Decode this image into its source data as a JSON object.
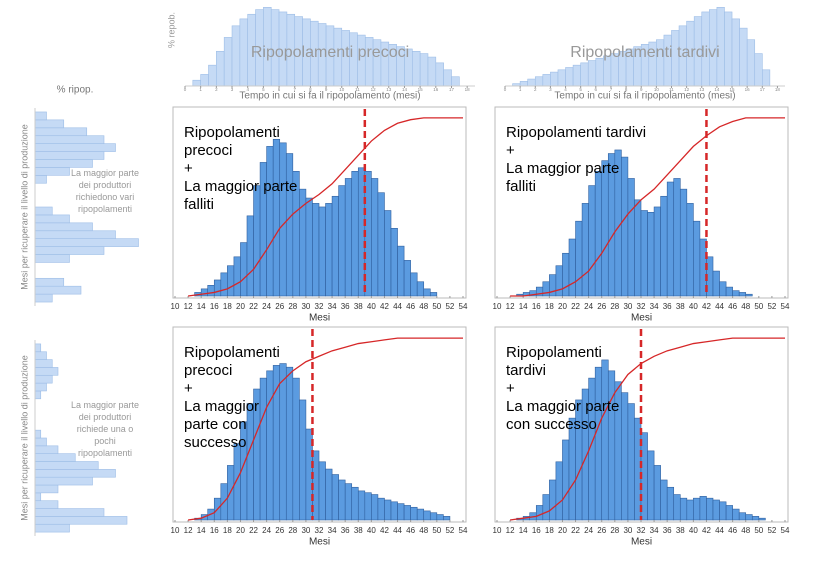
{
  "chart_data": [
    {
      "type": "histogram",
      "orientation": "vertical",
      "title": "Ripopolamenti precoci",
      "ylabel": "% repob.",
      "xlabel": "Tempo in cui si fa il ripopolamento (mesi)",
      "bins": [
        0.5,
        1,
        1.5,
        2,
        2.5,
        3,
        3.5,
        4,
        4.5,
        5,
        5.5,
        6,
        6.5,
        7,
        7.5,
        8,
        8.5,
        9,
        9.5,
        10,
        10.5,
        11,
        11.5,
        12,
        12.5,
        13,
        13.5,
        14,
        14.5,
        15,
        15.5,
        16,
        16.5,
        17,
        17.5
      ],
      "counts": [
        5,
        10,
        18,
        30,
        42,
        52,
        58,
        62,
        66,
        68,
        66,
        64,
        62,
        60,
        58,
        56,
        54,
        52,
        50,
        48,
        46,
        44,
        42,
        40,
        38,
        36,
        34,
        32,
        30,
        28,
        25,
        20,
        14,
        8
      ],
      "color": "#c5daf5",
      "edgecolor": "#9dbde6",
      "xlim": [
        0,
        18.5
      ],
      "ylim": [
        0,
        70
      ],
      "xticks": [
        0,
        1,
        2,
        3,
        4,
        5,
        6,
        7,
        8,
        9,
        10,
        11,
        12,
        13,
        14,
        15,
        16,
        17,
        18
      ]
    },
    {
      "type": "histogram",
      "orientation": "vertical",
      "title": "Ripopolamenti tardivi",
      "xlabel": "Tempo in cui si fa il ripopolamento (mesi)",
      "bins": [
        0.5,
        1,
        1.5,
        2,
        2.5,
        3,
        3.5,
        4,
        4.5,
        5,
        5.5,
        6,
        6.5,
        7,
        7.5,
        8,
        8.5,
        9,
        9.5,
        10,
        10.5,
        11,
        11.5,
        12,
        12.5,
        13,
        13.5,
        14,
        14.5,
        15,
        15.5,
        16,
        16.5,
        17,
        17.5
      ],
      "counts": [
        2,
        4,
        6,
        8,
        10,
        12,
        14,
        16,
        18,
        20,
        22,
        24,
        26,
        28,
        30,
        32,
        34,
        36,
        38,
        40,
        44,
        48,
        52,
        56,
        60,
        64,
        66,
        68,
        64,
        58,
        50,
        40,
        28,
        14
      ],
      "color": "#c5daf5",
      "edgecolor": "#9dbde6",
      "xlim": [
        0,
        18.5
      ],
      "ylim": [
        0,
        70
      ],
      "xticks": [
        0,
        1,
        2,
        3,
        4,
        5,
        6,
        7,
        8,
        9,
        10,
        11,
        12,
        13,
        14,
        15,
        16,
        17,
        18
      ]
    },
    {
      "type": "histogram",
      "orientation": "horizontal",
      "xlabel": "% ripop.",
      "ylabel": "Mesi per ricuperare il livello di produzione",
      "note": [
        "La maggior parte",
        "dei produttori",
        "richiedono vari",
        "ripopolamenti"
      ],
      "bins": [
        11,
        12,
        13,
        14,
        15,
        16,
        17,
        18,
        19,
        20,
        21,
        22,
        23,
        24,
        25,
        26,
        27,
        28,
        29,
        30,
        31,
        32,
        33,
        34,
        35
      ],
      "counts": [
        3,
        8,
        5,
        0,
        0,
        6,
        12,
        18,
        14,
        10,
        6,
        3,
        0,
        0,
        0,
        2,
        6,
        10,
        12,
        14,
        12,
        9,
        5,
        2
      ],
      "color": "#c5daf5",
      "edgecolor": "#9dbde6",
      "xlim": [
        0,
        20
      ],
      "ylim": [
        10.5,
        35.5
      ]
    },
    {
      "type": "histogram",
      "orientation": "horizontal",
      "ylabel": "Mesi per ricuperare il livello di produzione",
      "note": [
        "La maggior parte",
        "dei produttori",
        "richiede una o",
        "pochi",
        "ripopolamenti"
      ],
      "bins": [
        11,
        12,
        13,
        14,
        15,
        16,
        17,
        18,
        19,
        20,
        21,
        22,
        23,
        24,
        25,
        26,
        27,
        28,
        29,
        30,
        31,
        32,
        33,
        34,
        35
      ],
      "counts": [
        6,
        16,
        12,
        4,
        1,
        4,
        10,
        14,
        11,
        7,
        4,
        2,
        1,
        0,
        0,
        0,
        0,
        1,
        2,
        3,
        4,
        3,
        2,
        1
      ],
      "color": "#c5daf5",
      "edgecolor": "#9dbde6",
      "xlim": [
        0,
        20
      ],
      "ylim": [
        10.5,
        35.5
      ]
    },
    {
      "type": "histogram",
      "orientation": "vertical",
      "xlabel": "Mesi",
      "annotation": [
        "Ripopolamenti",
        "precoci",
        "+",
        "La maggior parte",
        "falliti"
      ],
      "bins": [
        13,
        14,
        15,
        16,
        17,
        18,
        19,
        20,
        21,
        22,
        23,
        24,
        25,
        26,
        27,
        28,
        29,
        30,
        31,
        32,
        33,
        34,
        35,
        36,
        37,
        38,
        39,
        40,
        41,
        42,
        43,
        44,
        45,
        46,
        47,
        48,
        49,
        50
      ],
      "counts": [
        2,
        4,
        6,
        9,
        13,
        17,
        22,
        30,
        45,
        62,
        75,
        84,
        88,
        86,
        80,
        70,
        60,
        55,
        52,
        50,
        52,
        56,
        62,
        66,
        70,
        72,
        70,
        66,
        58,
        48,
        38,
        28,
        20,
        13,
        8,
        4,
        2
      ],
      "color": "#5b9be0",
      "edgecolor": "#2f5f9e",
      "line": {
        "x": [
          12,
          14,
          16,
          18,
          20,
          22,
          24,
          26,
          28,
          30,
          32,
          34,
          36,
          38,
          40,
          42,
          44,
          46,
          48,
          50,
          52,
          54
        ],
        "values": [
          0,
          1,
          2,
          4,
          8,
          15,
          26,
          38,
          46,
          52,
          57,
          63,
          71,
          79,
          87,
          93,
          97,
          99,
          100,
          100,
          100,
          100
        ],
        "color": "#d62728"
      },
      "marker_x": 39,
      "marker_color": "#d62728",
      "xlim": [
        10,
        54
      ],
      "ylim": [
        0,
        105
      ],
      "xticks": [
        10,
        12,
        14,
        16,
        18,
        20,
        22,
        24,
        26,
        28,
        30,
        32,
        34,
        36,
        38,
        40,
        42,
        44,
        46,
        48,
        50,
        52,
        54
      ]
    },
    {
      "type": "histogram",
      "orientation": "vertical",
      "xlabel": "Mesi",
      "annotation": [
        "Ripopolamenti tardivi",
        "+",
        "La maggior parte",
        "falliti"
      ],
      "bins": [
        13,
        14,
        15,
        16,
        17,
        18,
        19,
        20,
        21,
        22,
        23,
        24,
        25,
        26,
        27,
        28,
        29,
        30,
        31,
        32,
        33,
        34,
        35,
        36,
        37,
        38,
        39,
        40,
        41,
        42,
        43,
        44,
        45,
        46,
        47,
        48,
        49,
        50
      ],
      "counts": [
        1,
        2,
        3,
        5,
        8,
        12,
        17,
        24,
        32,
        42,
        52,
        62,
        70,
        76,
        80,
        82,
        78,
        66,
        54,
        48,
        47,
        50,
        56,
        64,
        66,
        60,
        52,
        42,
        32,
        22,
        14,
        8,
        5,
        3,
        2,
        1,
        0
      ],
      "color": "#5b9be0",
      "edgecolor": "#2f5f9e",
      "line": {
        "x": [
          12,
          14,
          16,
          18,
          20,
          22,
          24,
          26,
          28,
          30,
          32,
          34,
          36,
          38,
          40,
          42,
          44,
          46,
          48,
          50,
          52,
          54
        ],
        "values": [
          0,
          0,
          1,
          2,
          4,
          8,
          14,
          24,
          36,
          46,
          54,
          60,
          68,
          76,
          84,
          90,
          95,
          98,
          100,
          100,
          100,
          100
        ],
        "color": "#d62728"
      },
      "marker_x": 42,
      "marker_color": "#d62728",
      "xlim": [
        10,
        54
      ],
      "ylim": [
        0,
        105
      ],
      "xticks": [
        10,
        12,
        14,
        16,
        18,
        20,
        22,
        24,
        26,
        28,
        30,
        32,
        34,
        36,
        38,
        40,
        42,
        44,
        46,
        48,
        50,
        52,
        54
      ]
    },
    {
      "type": "histogram",
      "orientation": "vertical",
      "xlabel": "Mesi",
      "annotation": [
        "Ripopolamenti",
        "precoci",
        "+",
        "La maggior",
        "parte con",
        "successo"
      ],
      "bins": [
        13,
        14,
        15,
        16,
        17,
        18,
        19,
        20,
        21,
        22,
        23,
        24,
        25,
        26,
        27,
        28,
        29,
        30,
        31,
        32,
        33,
        34,
        35,
        36,
        37,
        38,
        39,
        40,
        41,
        42,
        43,
        44,
        45,
        46,
        47,
        48,
        49,
        50,
        51,
        52
      ],
      "counts": [
        1,
        3,
        6,
        12,
        20,
        30,
        42,
        54,
        64,
        72,
        78,
        82,
        85,
        86,
        84,
        78,
        66,
        50,
        38,
        32,
        28,
        25,
        22,
        20,
        18,
        16,
        15,
        14,
        12,
        11,
        10,
        9,
        8,
        7,
        6,
        5,
        4,
        3,
        2
      ],
      "color": "#5b9be0",
      "edgecolor": "#2f5f9e",
      "line": {
        "x": [
          12,
          14,
          16,
          18,
          20,
          22,
          24,
          26,
          28,
          30,
          32,
          34,
          36,
          38,
          40,
          42,
          44,
          46,
          48,
          50,
          52,
          54
        ],
        "values": [
          0,
          1,
          4,
          12,
          26,
          44,
          62,
          75,
          82,
          87,
          90,
          93,
          95,
          97,
          98,
          99,
          100,
          100,
          100,
          100,
          100,
          100
        ],
        "color": "#d62728"
      },
      "marker_x": 31,
      "marker_color": "#d62728",
      "xlim": [
        10,
        54
      ],
      "ylim": [
        0,
        105
      ],
      "xticks": [
        10,
        12,
        14,
        16,
        18,
        20,
        22,
        24,
        26,
        28,
        30,
        32,
        34,
        36,
        38,
        40,
        42,
        44,
        46,
        48,
        50,
        52,
        54
      ]
    },
    {
      "type": "histogram",
      "orientation": "vertical",
      "xlabel": "Mesi",
      "annotation": [
        "Ripopolamenti",
        "tardivi",
        "+",
        "La maggior parte",
        "con successo"
      ],
      "bins": [
        13,
        14,
        15,
        16,
        17,
        18,
        19,
        20,
        21,
        22,
        23,
        24,
        25,
        26,
        27,
        28,
        29,
        30,
        31,
        32,
        33,
        34,
        35,
        36,
        37,
        38,
        39,
        40,
        41,
        42,
        43,
        44,
        45,
        46,
        47,
        48,
        49,
        50,
        51
      ],
      "counts": [
        1,
        2,
        4,
        8,
        14,
        22,
        32,
        44,
        56,
        66,
        72,
        78,
        84,
        88,
        82,
        76,
        70,
        64,
        56,
        48,
        38,
        30,
        22,
        18,
        14,
        12,
        11,
        12,
        13,
        12,
        11,
        10,
        8,
        6,
        4,
        3,
        2,
        1
      ],
      "color": "#5b9be0",
      "edgecolor": "#2f5f9e",
      "line": {
        "x": [
          12,
          14,
          16,
          18,
          20,
          22,
          24,
          26,
          28,
          30,
          32,
          34,
          36,
          38,
          40,
          42,
          44,
          46,
          48,
          50,
          52,
          54
        ],
        "values": [
          0,
          1,
          2,
          5,
          11,
          22,
          38,
          56,
          70,
          80,
          86,
          90,
          93,
          95,
          97,
          98,
          99,
          100,
          100,
          100,
          100,
          100
        ],
        "color": "#d62728"
      },
      "marker_x": 32,
      "marker_color": "#d62728",
      "xlim": [
        10,
        54
      ],
      "ylim": [
        0,
        105
      ],
      "xticks": [
        10,
        12,
        14,
        16,
        18,
        20,
        22,
        24,
        26,
        28,
        30,
        32,
        34,
        36,
        38,
        40,
        42,
        44,
        46,
        48,
        50,
        52,
        54
      ]
    }
  ]
}
